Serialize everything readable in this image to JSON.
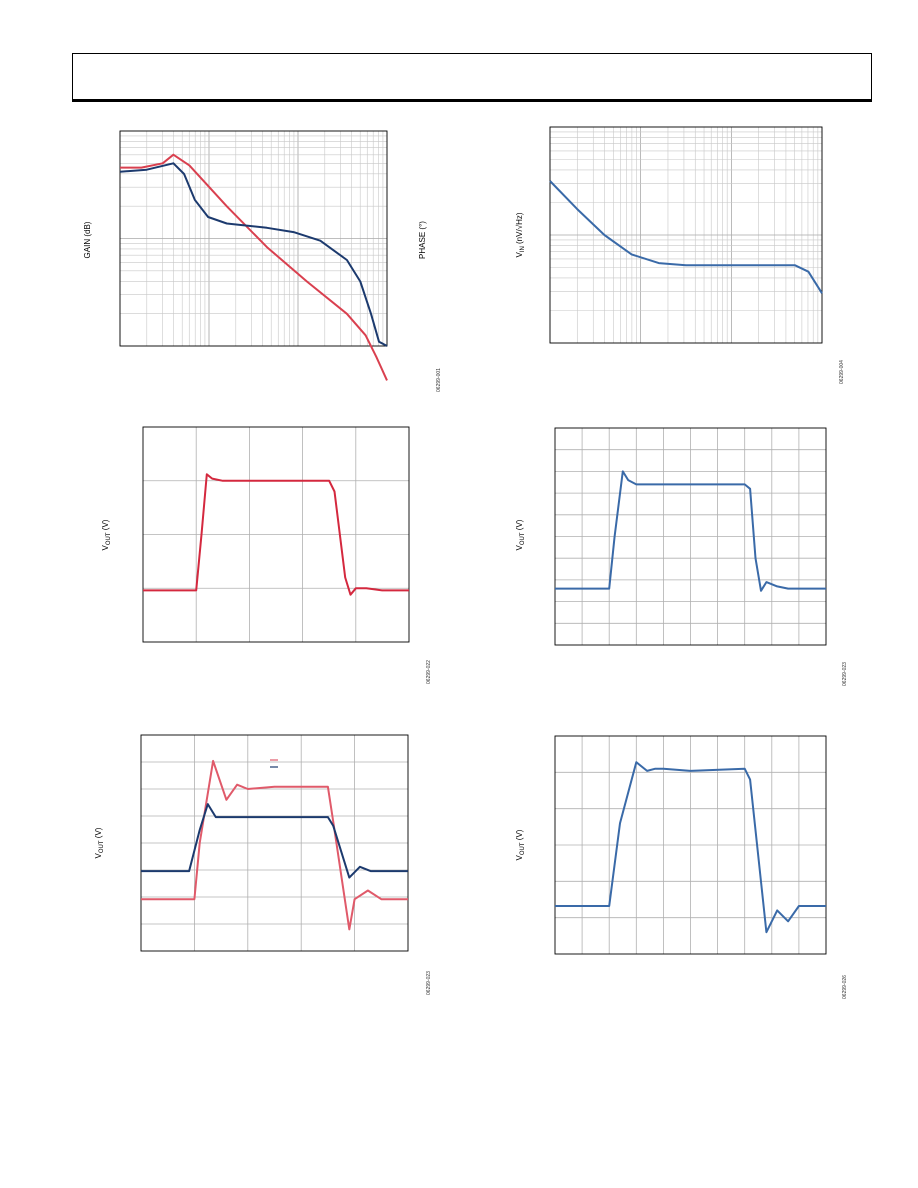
{
  "charts": [
    {
      "id": "c1",
      "ylabel": "GAIN (dB)",
      "y2label": "PHASE (°)",
      "code": "06299-001"
    },
    {
      "id": "c2",
      "ylabel": "V",
      "ylabel_sub": "IN",
      "ylabel_rest": " (nV/√Hz)",
      "code": "06299-004"
    },
    {
      "id": "c3",
      "ylabel": "V",
      "ylabel_sub": "OUT",
      "ylabel_rest": " (V)",
      "code": "06299-022"
    },
    {
      "id": "c4",
      "ylabel": "V",
      "ylabel_sub": "OUT",
      "ylabel_rest": " (V)",
      "code": "06299-023"
    },
    {
      "id": "c5",
      "ylabel": "V",
      "ylabel_sub": "OUT",
      "ylabel_rest": " (V)",
      "code": "06299-023"
    },
    {
      "id": "c6",
      "ylabel": "V",
      "ylabel_sub": "OUT",
      "ylabel_rest": " (V)",
      "code": "06299-026"
    }
  ],
  "chart_data": [
    {
      "type": "line",
      "id": "c1",
      "title": "",
      "xlabel": "",
      "ylabel": "GAIN (dB)",
      "y2label": "PHASE (°)",
      "xscale": "log",
      "grid": true,
      "series": [
        {
          "color": "#d9404f",
          "x": [
            0,
            0.08,
            0.16,
            0.2,
            0.26,
            0.4,
            0.55,
            0.7,
            0.85,
            0.92,
            0.96,
            1.0
          ],
          "values": [
            0.83,
            0.83,
            0.85,
            0.89,
            0.84,
            0.65,
            0.46,
            0.3,
            0.15,
            0.05,
            -0.05,
            -0.16
          ]
        },
        {
          "color": "#1c3a6e",
          "x": [
            0,
            0.1,
            0.2,
            0.24,
            0.28,
            0.33,
            0.4,
            0.55,
            0.65,
            0.75,
            0.85,
            0.9,
            0.94,
            0.97,
            1.0
          ],
          "values": [
            0.81,
            0.82,
            0.85,
            0.8,
            0.68,
            0.6,
            0.57,
            0.55,
            0.53,
            0.49,
            0.4,
            0.3,
            0.15,
            0.02,
            0.0
          ]
        }
      ]
    },
    {
      "type": "line",
      "id": "c2",
      "title": "",
      "xlabel": "",
      "ylabel": "VIN (nV/√Hz)",
      "xscale": "log",
      "grid": true,
      "series": [
        {
          "color": "#3a6aa8",
          "x": [
            0,
            0.1,
            0.2,
            0.3,
            0.4,
            0.5,
            0.6,
            0.7,
            0.8,
            0.9,
            0.95,
            1.0
          ],
          "values": [
            0.75,
            0.62,
            0.5,
            0.41,
            0.37,
            0.36,
            0.36,
            0.36,
            0.36,
            0.36,
            0.33,
            0.23
          ]
        }
      ]
    },
    {
      "type": "line",
      "id": "c3",
      "title": "",
      "xlabel": "",
      "ylabel": "VOUT (V)",
      "grid": true,
      "series": [
        {
          "color": "#d4283e",
          "x": [
            0,
            0.2,
            0.22,
            0.24,
            0.26,
            0.3,
            0.5,
            0.7,
            0.72,
            0.76,
            0.78,
            0.8,
            0.84,
            0.9,
            1.0
          ],
          "values": [
            0.24,
            0.24,
            0.5,
            0.78,
            0.76,
            0.75,
            0.75,
            0.75,
            0.7,
            0.3,
            0.22,
            0.25,
            0.25,
            0.24,
            0.24
          ]
        }
      ]
    },
    {
      "type": "line",
      "id": "c4",
      "title": "",
      "xlabel": "",
      "ylabel": "VOUT (V)",
      "grid": true,
      "series": [
        {
          "color": "#3a6aa8",
          "x": [
            0,
            0.2,
            0.22,
            0.25,
            0.27,
            0.3,
            0.5,
            0.7,
            0.72,
            0.74,
            0.76,
            0.78,
            0.82,
            0.86,
            1.0
          ],
          "values": [
            0.26,
            0.26,
            0.5,
            0.8,
            0.76,
            0.74,
            0.74,
            0.74,
            0.72,
            0.4,
            0.25,
            0.29,
            0.27,
            0.26,
            0.26
          ]
        }
      ]
    },
    {
      "type": "line",
      "id": "c5",
      "title": "",
      "xlabel": "",
      "ylabel": "VOUT (V)",
      "grid": true,
      "series": [
        {
          "color": "#e05a6a",
          "x": [
            0,
            0.2,
            0.22,
            0.27,
            0.32,
            0.36,
            0.4,
            0.5,
            0.7,
            0.72,
            0.78,
            0.8,
            0.85,
            0.9,
            1.0
          ],
          "values": [
            0.24,
            0.24,
            0.5,
            0.88,
            0.7,
            0.77,
            0.75,
            0.76,
            0.76,
            0.6,
            0.1,
            0.24,
            0.28,
            0.24,
            0.24
          ]
        },
        {
          "color": "#1c3a6e",
          "x": [
            0,
            0.18,
            0.22,
            0.25,
            0.28,
            0.32,
            0.5,
            0.7,
            0.72,
            0.78,
            0.82,
            0.86,
            1.0
          ],
          "values": [
            0.37,
            0.37,
            0.56,
            0.68,
            0.62,
            0.62,
            0.62,
            0.62,
            0.58,
            0.34,
            0.39,
            0.37,
            0.37
          ]
        }
      ]
    },
    {
      "type": "line",
      "id": "c6",
      "title": "",
      "xlabel": "",
      "ylabel": "VOUT (V)",
      "grid": true,
      "series": [
        {
          "color": "#3a6aa8",
          "x": [
            0,
            0.2,
            0.24,
            0.3,
            0.34,
            0.37,
            0.4,
            0.5,
            0.7,
            0.72,
            0.78,
            0.82,
            0.86,
            0.9,
            1.0
          ],
          "values": [
            0.22,
            0.22,
            0.6,
            0.88,
            0.84,
            0.85,
            0.85,
            0.84,
            0.85,
            0.8,
            0.1,
            0.2,
            0.15,
            0.22,
            0.22
          ]
        }
      ]
    }
  ]
}
